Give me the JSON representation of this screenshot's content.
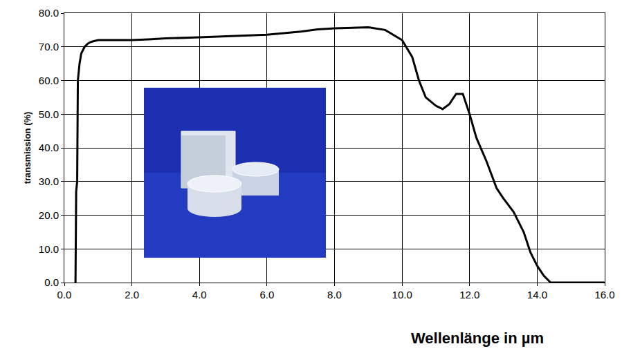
{
  "chart_data": {
    "type": "line",
    "x_label": "Wellenlänge in µm",
    "y_label": "transmission (%)",
    "x": [
      0.3,
      0.33,
      0.35,
      0.38,
      0.4,
      0.45,
      0.5,
      0.6,
      0.7,
      0.8,
      1.0,
      2.0,
      2.5,
      3.0,
      4.0,
      5.0,
      6.0,
      7.0,
      7.5,
      8.0,
      8.5,
      9.0,
      9.5,
      10.0,
      10.3,
      10.5,
      10.7,
      11.0,
      11.2,
      11.4,
      11.6,
      11.8,
      12.0,
      12.2,
      12.5,
      12.8,
      13.0,
      13.3,
      13.6,
      13.8,
      14.0,
      14.2,
      14.4,
      15.0,
      16.0
    ],
    "values": [
      0,
      0,
      27,
      30,
      60,
      65,
      68,
      70,
      71,
      71.5,
      72,
      72,
      72.2,
      72.5,
      72.8,
      73.2,
      73.6,
      74.5,
      75.2,
      75.5,
      75.7,
      75.8,
      75,
      72,
      67,
      60,
      55,
      52.5,
      51.5,
      53,
      56,
      56,
      50,
      43,
      36,
      28,
      25,
      21,
      15,
      9,
      5,
      2,
      0,
      0,
      0
    ],
    "color": "#000000",
    "xlim": [
      0,
      16
    ],
    "ylim": [
      0,
      80
    ],
    "xticks": [
      {
        "value": 0,
        "label": "0.0"
      },
      {
        "value": 2,
        "label": "2.0"
      },
      {
        "value": 4,
        "label": "4.0"
      },
      {
        "value": 6,
        "label": "6.0"
      },
      {
        "value": 8,
        "label": "8.0"
      },
      {
        "value": 10,
        "label": "10.0"
      },
      {
        "value": 12,
        "label": "12.0"
      },
      {
        "value": 14,
        "label": "14.0"
      },
      {
        "value": 16,
        "label": "16.0"
      }
    ],
    "yticks": [
      {
        "value": 0,
        "label": "0.0"
      },
      {
        "value": 10,
        "label": "10.0"
      },
      {
        "value": 20,
        "label": "20.0"
      },
      {
        "value": 30,
        "label": "30.0"
      },
      {
        "value": 40,
        "label": "40.0"
      },
      {
        "value": 50,
        "label": "50.0"
      },
      {
        "value": 60,
        "label": "60.0"
      },
      {
        "value": 70,
        "label": "70.0"
      },
      {
        "value": 80,
        "label": "80.0"
      }
    ],
    "grid": true
  }
}
